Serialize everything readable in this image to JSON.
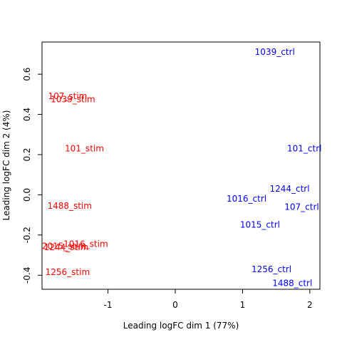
{
  "chart_data": {
    "type": "scatter",
    "title": "",
    "xlabel": "Leading logFC dim 1 (77%)",
    "ylabel": "Leading logFC dim 2 (4%)",
    "xlim": [
      -1.98,
      2.15
    ],
    "ylim": [
      -0.47,
      0.76
    ],
    "xticks": [
      -1,
      0,
      1,
      2
    ],
    "yticks": [
      -0.4,
      -0.2,
      0.0,
      0.2,
      0.4,
      0.6
    ],
    "xtick_labels": [
      "-1",
      "0",
      "1",
      "2"
    ],
    "ytick_labels": [
      "-0.4",
      "-0.2",
      "0.0",
      "0.2",
      "0.4",
      "0.6"
    ],
    "grid": false,
    "colors": {
      "stim": "#ff0000",
      "ctrl": "#0000ff",
      "axis": "#000000"
    },
    "points": [
      {
        "label": "107_stim",
        "x": -1.6,
        "y": 0.49,
        "group": "stim"
      },
      {
        "label": "1039_stim",
        "x": -1.52,
        "y": 0.475,
        "group": "stim"
      },
      {
        "label": "101_stim",
        "x": -1.35,
        "y": 0.23,
        "group": "stim"
      },
      {
        "label": "1488_stim",
        "x": -1.57,
        "y": -0.055,
        "group": "stim"
      },
      {
        "label": "1016_stim",
        "x": -1.33,
        "y": -0.245,
        "group": "stim"
      },
      {
        "label": "2015_stim",
        "x": -1.65,
        "y": -0.255,
        "group": "stim"
      },
      {
        "label": "1244_stim",
        "x": -1.62,
        "y": -0.26,
        "group": "stim"
      },
      {
        "label": "1256_stim",
        "x": -1.6,
        "y": -0.385,
        "group": "stim"
      },
      {
        "label": "1039_ctrl",
        "x": 1.48,
        "y": 0.71,
        "group": "ctrl"
      },
      {
        "label": "101_ctrl",
        "x": 1.92,
        "y": 0.23,
        "group": "ctrl"
      },
      {
        "label": "1244_ctrl",
        "x": 1.7,
        "y": 0.03,
        "group": "ctrl"
      },
      {
        "label": "1016_ctrl",
        "x": 1.06,
        "y": -0.02,
        "group": "ctrl"
      },
      {
        "label": "107_ctrl",
        "x": 1.88,
        "y": -0.06,
        "group": "ctrl"
      },
      {
        "label": "1015_ctrl",
        "x": 1.26,
        "y": -0.15,
        "group": "ctrl"
      },
      {
        "label": "1256_ctrl",
        "x": 1.43,
        "y": -0.37,
        "group": "ctrl"
      },
      {
        "label": "1488_ctrl",
        "x": 1.74,
        "y": -0.44,
        "group": "ctrl"
      }
    ]
  }
}
